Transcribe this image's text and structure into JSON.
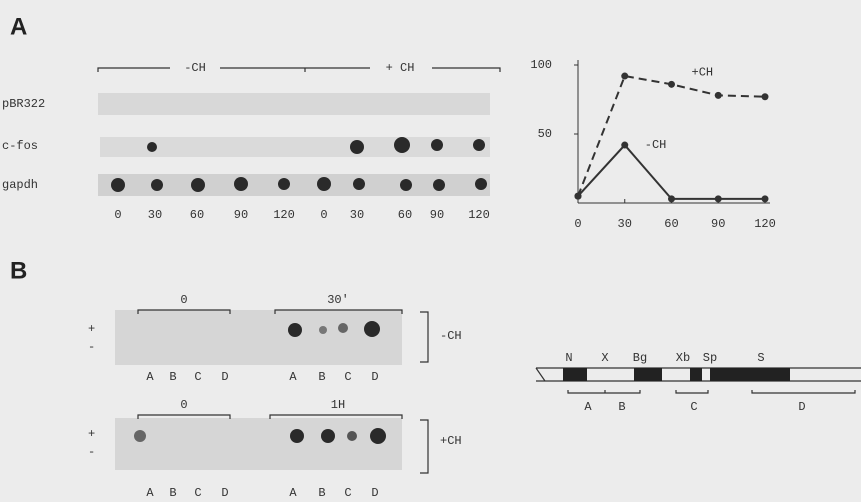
{
  "panel_a": {
    "label": "A",
    "groups": [
      "-CH",
      "+ CH"
    ],
    "rows": [
      "pBR322",
      "c-fos",
      "gapdh"
    ],
    "lanes": [
      "0",
      "30",
      "60",
      "90",
      "120",
      "0",
      "30",
      "60",
      "90",
      "120"
    ]
  },
  "chart_data": {
    "type": "line",
    "x": [
      0,
      30,
      60,
      90,
      120
    ],
    "xlim": [
      0,
      120
    ],
    "ylim": [
      0,
      100
    ],
    "xticks": [
      0,
      30,
      60,
      90,
      120
    ],
    "yticks": [
      50,
      100
    ],
    "series": [
      {
        "name": "+CH",
        "color": "#333333",
        "dashed": true,
        "values": [
          5,
          92,
          86,
          78,
          77
        ]
      },
      {
        "name": "-CH",
        "color": "#333333",
        "dashed": false,
        "values": [
          5,
          42,
          3,
          3,
          3
        ]
      }
    ]
  },
  "panel_b": {
    "label": "B",
    "blots": [
      {
        "times": [
          "0",
          "30'"
        ],
        "condition": "-CH",
        "signs": [
          "+",
          "-"
        ],
        "lanes": [
          "A",
          "B",
          "C",
          "D",
          "A",
          "B",
          "C",
          "D"
        ]
      },
      {
        "times": [
          "0",
          "1H"
        ],
        "condition": "+CH",
        "signs": [
          "+",
          "-"
        ],
        "lanes": [
          "A",
          "B",
          "C",
          "D",
          "A",
          "B",
          "C",
          "D"
        ]
      }
    ]
  },
  "map": {
    "sites": [
      "N",
      "X",
      "Bg",
      "Xb",
      "Sp",
      "S"
    ],
    "segments": [
      "A",
      "B",
      "C",
      "D"
    ]
  }
}
